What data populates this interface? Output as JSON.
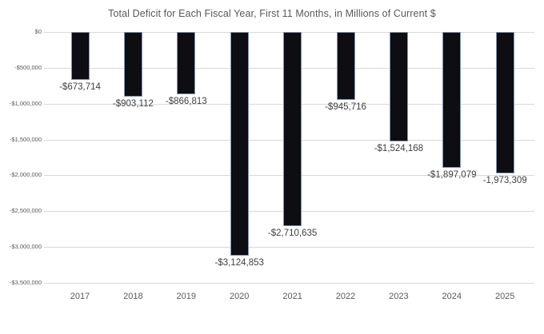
{
  "chart_data": {
    "type": "bar",
    "title": "Total Deficit for Each Fiscal Year, First 11 Months, in Millions of Current $",
    "xlabel": "",
    "ylabel": "",
    "categories": [
      "2017",
      "2018",
      "2019",
      "2020",
      "2021",
      "2022",
      "2023",
      "2024",
      "2025"
    ],
    "values": [
      -673714,
      -903112,
      -866813,
      -3124853,
      -2710635,
      -945716,
      -1524168,
      -1897079,
      -1973309
    ],
    "data_labels": [
      "-$673,714",
      "-$903,112",
      "-$866,813",
      "-$3,124,853",
      "-$2,710,635",
      "-$945,716",
      "-$1,524,168",
      "-$1,897,079",
      "-1,973,309"
    ],
    "y_ticks": [
      {
        "value": 0,
        "label": "$0"
      },
      {
        "value": -500000,
        "label": "-$500,000"
      },
      {
        "value": -1000000,
        "label": "-$1,000,000"
      },
      {
        "value": -1500000,
        "label": "-$1,500,000"
      },
      {
        "value": -2000000,
        "label": "-$2,000,000"
      },
      {
        "value": -2500000,
        "label": "-$2,500,000"
      },
      {
        "value": -3000000,
        "label": "-$3,000,000"
      },
      {
        "value": -3500000,
        "label": "-$3,500,000"
      }
    ],
    "ylim": [
      -3500000,
      0
    ],
    "grid": true,
    "legend": "none",
    "colors": {
      "bar_fill": "#0d0d12",
      "bar_border": "#8496b0",
      "gridline": "#d9d9d9",
      "title": "#595959",
      "axis_label": "#595959",
      "data_label": "#404040",
      "background": "#ffffff"
    }
  }
}
